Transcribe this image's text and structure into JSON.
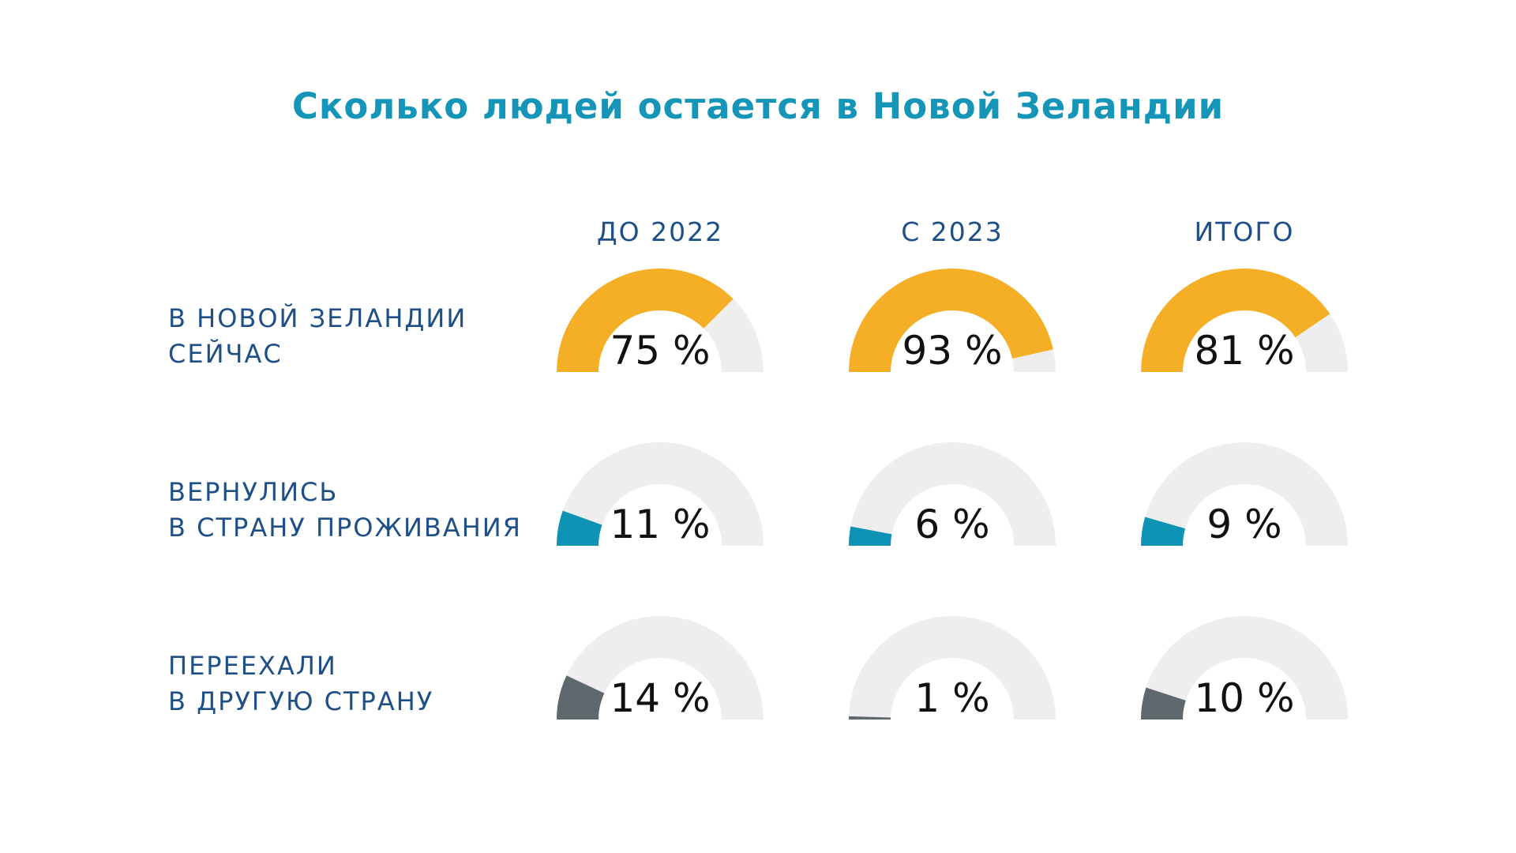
{
  "chart_data": {
    "type": "gauge",
    "title": "Сколько людей остается в Новой Зеландии",
    "columns": [
      "ДО 2022",
      "С 2023",
      "ИТОГО"
    ],
    "rows": [
      {
        "label": [
          "В НОВОЙ ЗЕЛАНДИИ",
          "СЕЙЧАС"
        ],
        "color": "#F4AF27",
        "values": [
          75,
          93,
          81
        ],
        "labels": [
          "75 %",
          "93 %",
          "81 %"
        ]
      },
      {
        "label": [
          "ВЕРНУЛИСЬ",
          "В СТРАНУ ПРОЖИВАНИЯ"
        ],
        "color": "#0E93B5",
        "values": [
          11,
          6,
          9
        ],
        "labels": [
          "11 %",
          "6 %",
          "9 %"
        ]
      },
      {
        "label": [
          "ПЕРЕЕХАЛИ",
          "В ДРУГУЮ СТРАНУ"
        ],
        "color": "#5F686D",
        "values": [
          14,
          1,
          10
        ],
        "labels": [
          "14 %",
          "1 %",
          "10 %"
        ]
      }
    ],
    "track_color": "#EEEEEE",
    "range": [
      0,
      100
    ]
  }
}
